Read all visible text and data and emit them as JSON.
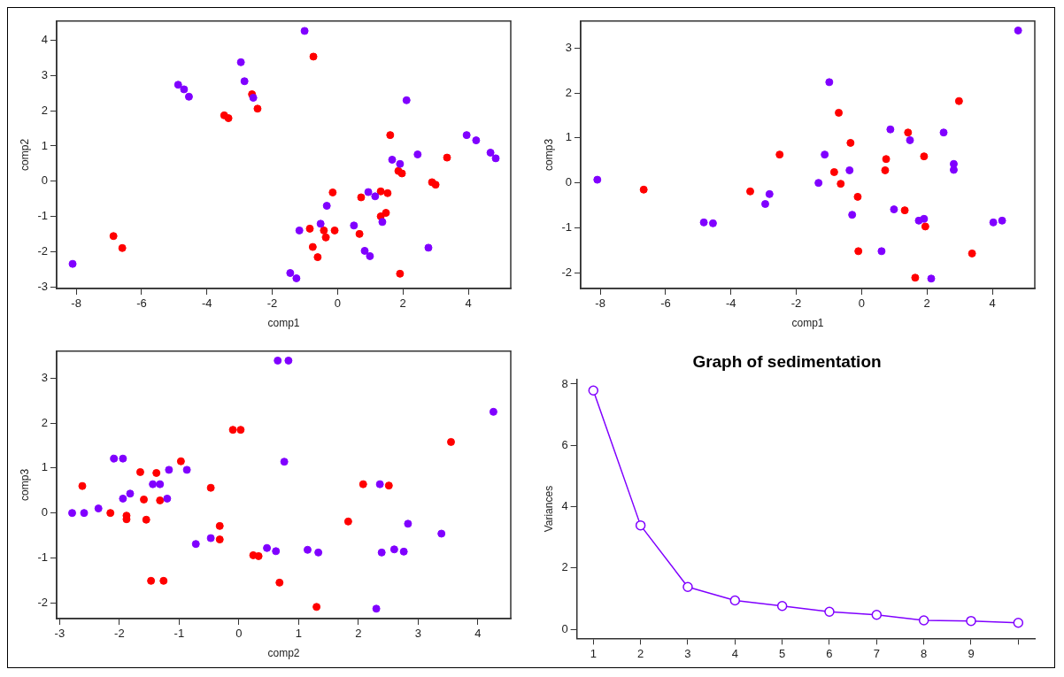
{
  "chart_data": [
    {
      "type": "scatter",
      "xlabel": "comp1",
      "ylabel": "comp2",
      "xlim": [
        -8.6,
        5.3
      ],
      "ylim": [
        -3.05,
        4.55
      ],
      "xticks": [
        -8,
        -6,
        -4,
        -2,
        0,
        2,
        4
      ],
      "yticks": [
        -3,
        -2,
        -1,
        0,
        1,
        2,
        3,
        4
      ],
      "grid": false,
      "marker": "circle",
      "series": [
        {
          "color": "#8000ff",
          "x": [
            -1.01,
            -2.96,
            -2.85,
            -4.88,
            -4.7,
            -4.55,
            -2.58,
            2.11,
            3.95,
            4.24,
            4.68,
            4.84,
            2.45,
            1.67,
            1.91,
            -0.33,
            0.94,
            1.15,
            -1.17,
            -0.52,
            0.5,
            1.37,
            0.83,
            0.99,
            2.78,
            -1.45,
            -1.26,
            -8.11
          ],
          "values": [
            4.27,
            3.38,
            2.84,
            2.74,
            2.61,
            2.4,
            2.37,
            2.3,
            1.31,
            1.16,
            0.81,
            0.65,
            0.76,
            0.61,
            0.49,
            -0.7,
            -0.31,
            -0.43,
            -1.4,
            -1.21,
            -1.26,
            -1.16,
            -1.98,
            -2.13,
            -1.89,
            -2.61,
            -2.76,
            -2.35
          ]
        },
        {
          "color": "#ff0000",
          "x": [
            -0.74,
            -2.62,
            -2.45,
            -3.47,
            -3.34,
            1.61,
            3.35,
            1.86,
            1.97,
            2.89,
            3.0,
            -0.15,
            0.72,
            1.32,
            1.53,
            1.48,
            1.32,
            -0.85,
            -0.42,
            -0.09,
            -0.36,
            0.67,
            -0.76,
            -0.61,
            -6.86,
            -6.59,
            1.91
          ],
          "values": [
            3.54,
            2.47,
            2.06,
            1.87,
            1.79,
            1.31,
            0.67,
            0.29,
            0.22,
            -0.03,
            -0.1,
            -0.32,
            -0.46,
            -0.29,
            -0.34,
            -0.9,
            -1.0,
            -1.35,
            -1.4,
            -1.4,
            -1.6,
            -1.5,
            -1.87,
            -2.16,
            -1.56,
            -1.9,
            -2.63
          ]
        }
      ]
    },
    {
      "type": "scatter",
      "xlabel": "comp1",
      "ylabel": "comp3",
      "xlim": [
        -8.6,
        5.3
      ],
      "ylim": [
        -2.35,
        3.6
      ],
      "xticks": [
        -8,
        -6,
        -4,
        -2,
        0,
        2,
        4
      ],
      "yticks": [
        -2,
        -1,
        0,
        1,
        2,
        3
      ],
      "grid": false,
      "marker": "circle",
      "series": [
        {
          "color": "#8000ff",
          "x": [
            4.79,
            -0.99,
            -8.09,
            0.88,
            1.48,
            2.51,
            -1.13,
            -0.37,
            2.82,
            2.82,
            -1.32,
            -2.82,
            -2.95,
            -4.83,
            -4.55,
            -0.29,
            0.99,
            1.75,
            1.91,
            4.03,
            4.3,
            0.61,
            2.13
          ],
          "values": [
            3.39,
            2.24,
            0.07,
            1.19,
            0.95,
            1.12,
            0.63,
            0.28,
            0.42,
            0.29,
            0.0,
            -0.25,
            -0.47,
            -0.88,
            -0.9,
            -0.71,
            -0.59,
            -0.84,
            -0.8,
            -0.88,
            -0.84,
            -1.52,
            -2.13
          ]
        },
        {
          "color": "#ff0000",
          "x": [
            2.98,
            -0.7,
            1.42,
            -0.34,
            -2.51,
            0.75,
            1.91,
            0.72,
            -0.84,
            -0.64,
            -6.67,
            -3.41,
            -0.12,
            1.32,
            1.95,
            -0.1,
            3.38,
            1.64
          ],
          "values": [
            1.82,
            1.56,
            1.12,
            0.89,
            0.63,
            0.53,
            0.59,
            0.28,
            0.24,
            -0.02,
            -0.15,
            -0.19,
            -0.31,
            -0.61,
            -0.97,
            -1.52,
            -1.57,
            -2.11
          ]
        }
      ]
    },
    {
      "type": "scatter",
      "xlabel": "comp2",
      "ylabel": "comp3",
      "xlim": [
        -3.05,
        4.55
      ],
      "ylim": [
        -2.35,
        3.6
      ],
      "xticks": [
        -3,
        -2,
        -1,
        0,
        1,
        2,
        3,
        4
      ],
      "yticks": [
        -2,
        -1,
        0,
        1,
        2,
        3
      ],
      "grid": false,
      "marker": "circle",
      "series": [
        {
          "color": "#8000ff",
          "x": [
            0.65,
            0.83,
            4.26,
            0.76,
            -2.09,
            -1.94,
            -1.17,
            -0.87,
            -1.44,
            -1.32,
            -1.82,
            -1.94,
            -1.2,
            2.36,
            -2.35,
            -2.79,
            -2.59,
            2.83,
            3.39,
            -0.72,
            -0.47,
            0.47,
            0.62,
            1.15,
            1.33,
            2.39,
            2.6,
            2.76,
            2.3
          ],
          "values": [
            3.39,
            3.39,
            2.25,
            1.14,
            1.21,
            1.21,
            0.96,
            0.96,
            0.64,
            0.64,
            0.43,
            0.32,
            0.32,
            0.64,
            0.1,
            0.0,
            0.0,
            -0.24,
            -0.46,
            -0.69,
            -0.56,
            -0.78,
            -0.85,
            -0.82,
            -0.88,
            -0.88,
            -0.81,
            -0.86,
            -2.13
          ]
        },
        {
          "color": "#ff0000",
          "x": [
            -0.1,
            0.03,
            3.55,
            -0.97,
            -1.65,
            -1.38,
            -2.62,
            -0.47,
            -1.59,
            -1.32,
            2.08,
            2.51,
            -2.15,
            -1.88,
            -1.88,
            -1.55,
            1.83,
            -0.32,
            -0.32,
            0.24,
            0.33,
            -1.47,
            -1.26,
            0.68,
            1.3
          ],
          "values": [
            1.85,
            1.85,
            1.58,
            1.15,
            0.91,
            0.89,
            0.6,
            0.56,
            0.3,
            0.28,
            0.64,
            0.61,
            0.0,
            -0.06,
            -0.14,
            -0.15,
            -0.19,
            -0.29,
            -0.59,
            -0.94,
            -0.96,
            -1.51,
            -1.51,
            -1.55,
            -2.09
          ]
        }
      ]
    },
    {
      "type": "line",
      "title": "Graph of sedimentation",
      "ylabel": "Variances",
      "xlim": [
        0.65,
        10.35
      ],
      "ylim": [
        -0.3,
        8.15
      ],
      "xticks": [
        1,
        2,
        3,
        4,
        5,
        6,
        7,
        8,
        9,
        {
          "value": 10,
          "label": null
        }
      ],
      "yticks": [
        0,
        2,
        4,
        6,
        8
      ],
      "grid": false,
      "marker": "circle",
      "line_style": "solid",
      "series": [
        {
          "color": "#8000ff",
          "x": [
            1,
            2,
            3,
            4,
            5,
            6,
            7,
            8,
            9,
            10
          ],
          "values": [
            7.79,
            3.39,
            1.38,
            0.94,
            0.76,
            0.57,
            0.47,
            0.29,
            0.27,
            0.21
          ]
        }
      ]
    }
  ]
}
